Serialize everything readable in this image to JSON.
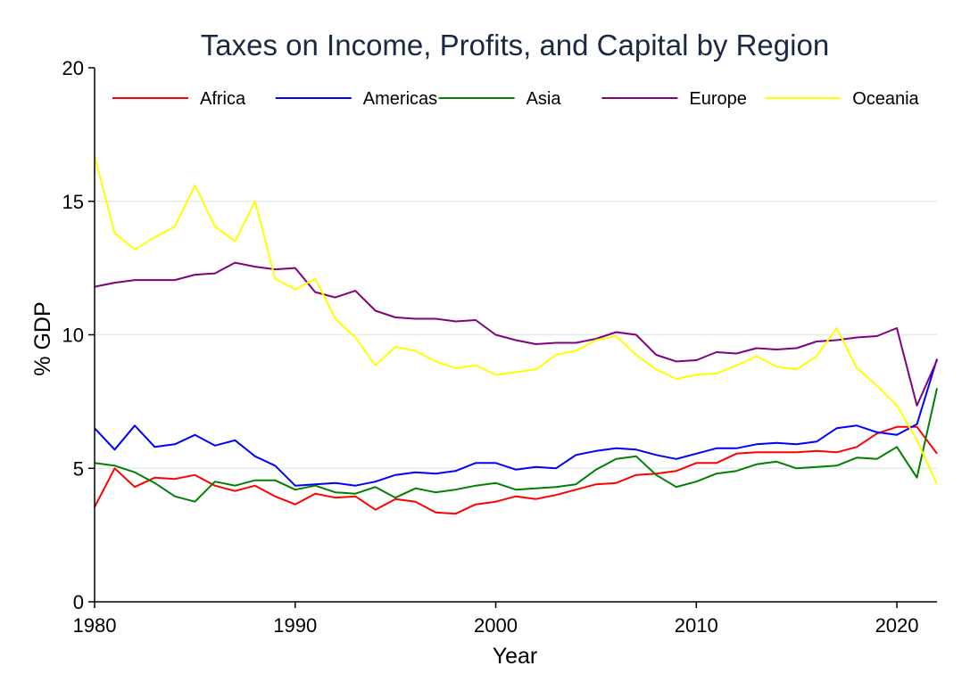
{
  "chart_data": {
    "type": "line",
    "title": "Taxes on Income, Profits, and Capital by Region",
    "xlabel": "Year",
    "ylabel": "% GDP",
    "xlim": [
      1980,
      2022
    ],
    "ylim": [
      0,
      20
    ],
    "xticks": [
      1980,
      1990,
      2000,
      2010,
      2020
    ],
    "yticks": [
      0,
      5,
      10,
      15,
      20
    ],
    "grid": true,
    "legend_position": "top",
    "x": [
      1980,
      1981,
      1982,
      1983,
      1984,
      1985,
      1986,
      1987,
      1988,
      1989,
      1990,
      1991,
      1992,
      1993,
      1994,
      1995,
      1996,
      1997,
      1998,
      1999,
      2000,
      2001,
      2002,
      2003,
      2004,
      2005,
      2006,
      2007,
      2008,
      2009,
      2010,
      2011,
      2012,
      2013,
      2014,
      2015,
      2016,
      2017,
      2018,
      2019,
      2020,
      2021,
      2022
    ],
    "series": [
      {
        "name": "Africa",
        "color": "#ff0000",
        "values": [
          3.55,
          5.0,
          4.3,
          4.65,
          4.6,
          4.75,
          4.35,
          4.15,
          4.35,
          3.95,
          3.65,
          4.05,
          3.9,
          3.95,
          3.45,
          3.85,
          3.75,
          3.35,
          3.3,
          3.65,
          3.75,
          3.95,
          3.85,
          4.0,
          4.2,
          4.4,
          4.45,
          4.75,
          4.8,
          4.9,
          5.2,
          5.2,
          5.55,
          5.6,
          5.6,
          5.6,
          5.65,
          5.6,
          5.8,
          6.3,
          6.55,
          6.55,
          5.55
        ]
      },
      {
        "name": "Americas",
        "color": "#0000ff",
        "values": [
          6.5,
          5.7,
          6.6,
          5.8,
          5.9,
          6.25,
          5.85,
          6.05,
          5.45,
          5.1,
          4.35,
          4.4,
          4.45,
          4.35,
          4.5,
          4.75,
          4.85,
          4.8,
          4.9,
          5.2,
          5.2,
          4.95,
          5.05,
          5.0,
          5.5,
          5.65,
          5.75,
          5.7,
          5.5,
          5.35,
          5.55,
          5.75,
          5.75,
          5.9,
          5.95,
          5.9,
          6.0,
          6.5,
          6.6,
          6.35,
          6.25,
          6.65,
          9.1
        ]
      },
      {
        "name": "Asia",
        "color": "#008000",
        "values": [
          5.2,
          5.1,
          4.85,
          4.45,
          3.95,
          3.75,
          4.5,
          4.35,
          4.55,
          4.55,
          4.2,
          4.35,
          4.1,
          4.05,
          4.3,
          3.9,
          4.25,
          4.1,
          4.2,
          4.35,
          4.45,
          4.2,
          4.25,
          4.3,
          4.4,
          4.95,
          5.35,
          5.45,
          4.75,
          4.3,
          4.5,
          4.8,
          4.9,
          5.15,
          5.25,
          5.0,
          5.05,
          5.1,
          5.4,
          5.35,
          5.8,
          4.65,
          8.0
        ]
      },
      {
        "name": "Europe",
        "color": "#800080",
        "values": [
          11.8,
          11.95,
          12.05,
          12.05,
          12.05,
          12.25,
          12.3,
          12.7,
          12.55,
          12.45,
          12.5,
          11.6,
          11.4,
          11.65,
          10.9,
          10.65,
          10.6,
          10.6,
          10.5,
          10.55,
          10.0,
          9.8,
          9.65,
          9.7,
          9.7,
          9.85,
          10.1,
          10.0,
          9.25,
          9.0,
          9.05,
          9.35,
          9.3,
          9.5,
          9.45,
          9.5,
          9.75,
          9.8,
          9.9,
          9.95,
          10.25,
          7.35,
          9.05
        ]
      },
      {
        "name": "Oceania",
        "color": "#ffff00",
        "values": [
          16.7,
          13.8,
          13.2,
          13.65,
          14.05,
          15.6,
          14.05,
          13.5,
          15.0,
          12.1,
          11.7,
          12.1,
          10.6,
          9.9,
          8.85,
          9.55,
          9.4,
          9.0,
          8.75,
          8.85,
          8.5,
          8.6,
          8.7,
          9.25,
          9.4,
          9.8,
          9.95,
          9.25,
          8.7,
          8.35,
          8.5,
          8.55,
          8.85,
          9.2,
          8.8,
          8.7,
          9.2,
          10.25,
          8.75,
          8.1,
          7.35,
          6.05,
          4.4
        ]
      }
    ]
  }
}
